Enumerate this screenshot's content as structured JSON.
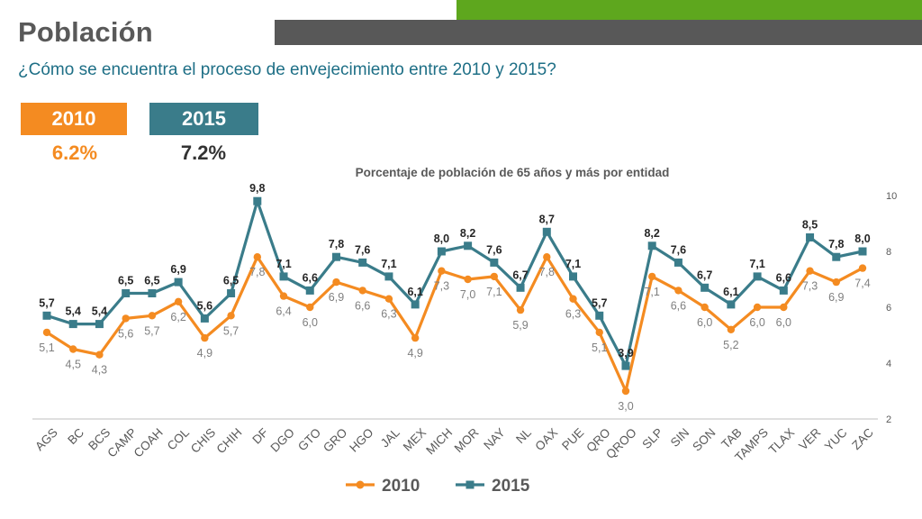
{
  "header": {
    "title": "Población",
    "subtitle": "¿Cómo se encuentra el proceso de envejecimiento entre 2010 y 2015?"
  },
  "summary": {
    "year_2010": "2010",
    "pct_2010": "6.2%",
    "year_2015": "2015",
    "pct_2015": "7.2%"
  },
  "colors": {
    "orange": "#f48b21",
    "teal": "#3a7c8a",
    "green": "#5ea71e",
    "gray": "#585858"
  },
  "chart_data": {
    "type": "line",
    "title": "Porcentaje de población de 65 años y más por entidad",
    "xlabel": "",
    "ylabel": "",
    "ylim": [
      2,
      10
    ],
    "yticks": [
      2,
      4,
      6,
      8,
      10
    ],
    "legend_position": "bottom",
    "categories": [
      "AGS",
      "BC",
      "BCS",
      "CAMP",
      "COAH",
      "COL",
      "CHIS",
      "CHIH",
      "DF",
      "DGO",
      "GTO",
      "GRO",
      "HGO",
      "JAL",
      "MEX",
      "MICH",
      "MOR",
      "NAY",
      "NL",
      "OAX",
      "PUE",
      "QRO",
      "QROO",
      "SLP",
      "SIN",
      "SON",
      "TAB",
      "TAMPS",
      "TLAX",
      "VER",
      "YUC",
      "ZAC"
    ],
    "series": [
      {
        "name": "2010",
        "color": "#f48b21",
        "values": [
          5.1,
          4.5,
          4.3,
          5.6,
          5.7,
          6.2,
          4.9,
          5.7,
          7.8,
          6.4,
          6.0,
          6.9,
          6.6,
          6.3,
          4.9,
          7.3,
          7.0,
          7.1,
          5.9,
          7.8,
          6.3,
          5.1,
          3.0,
          7.1,
          6.6,
          6.0,
          5.2,
          6.0,
          6.0,
          7.3,
          6.9,
          7.4
        ],
        "labels": [
          "5,1",
          "4,5",
          "4,3",
          "5,6",
          "5,7",
          "6,2",
          "4,9",
          "5,7",
          "7,8",
          "6,4",
          "6,0",
          "6,9",
          "6,6",
          "6,3",
          "4,9",
          "7,3",
          "7,0",
          "7,1",
          "5,9",
          "7,8",
          "6,3",
          "5,1",
          "3,0",
          "7,1",
          "6,6",
          "6,0",
          "5,2",
          "6,0",
          "6,0",
          "7,3",
          "6,9",
          "7,4"
        ]
      },
      {
        "name": "2015",
        "color": "#3a7c8a",
        "values": [
          5.7,
          5.4,
          5.4,
          6.5,
          6.5,
          6.9,
          5.6,
          6.5,
          9.8,
          7.1,
          6.6,
          7.8,
          7.6,
          7.1,
          6.1,
          8.0,
          8.2,
          7.6,
          6.7,
          8.7,
          7.1,
          5.7,
          3.9,
          8.2,
          7.6,
          6.7,
          6.1,
          7.1,
          6.6,
          8.5,
          7.8,
          8.0
        ],
        "labels": [
          "5,7",
          "5,4",
          "5,4",
          "6,5",
          "6,5",
          "6,9",
          "5,6",
          "6,5",
          "9,8",
          "7,1",
          "6,6",
          "7,8",
          "7,6",
          "7,1",
          "6,1",
          "8,0",
          "8,2",
          "7,6",
          "6,7",
          "8,7",
          "7,1",
          "5,7",
          "3,9",
          "8,2",
          "7,6",
          "6,7",
          "6,1",
          "7,1",
          "6,6",
          "8,5",
          "7,8",
          "8,0"
        ]
      }
    ]
  }
}
